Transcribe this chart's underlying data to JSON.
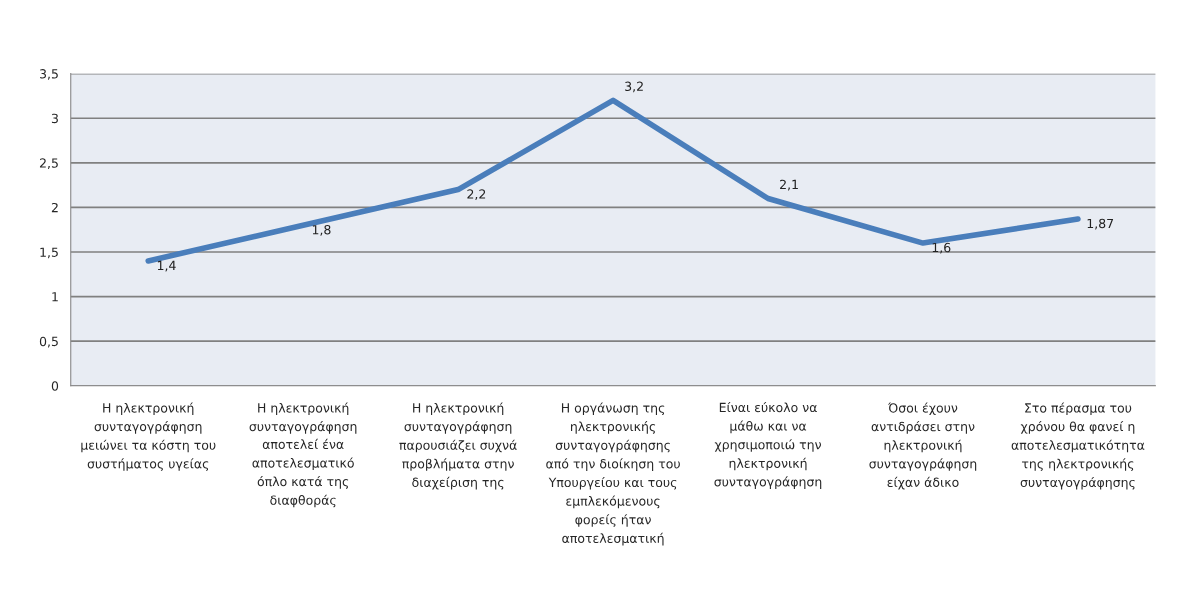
{
  "chart_data": {
    "type": "line",
    "categories": [
      "Η ηλεκτρονική\nσυνταγογράφηση\nμειώνει τα κόστη του\nσυστήματος υγείας",
      "Η ηλεκτρονική\nσυνταγογράφηση\nαποτελεί ένα\nαποτελεσματικό\nόπλο κατά της\nδιαφθοράς",
      "Η ηλεκτρονική\nσυνταγογράφηση\nπαρουσιάζει συχνά\nπροβλήματα στην\nδιαχείριση της",
      "Η οργάνωση της\nηλεκτρονικής\nσυνταγογράφησης\nαπό την διοίκηση του\nΥπουργείου και τους\nεμπλεκόμενους\nφορείς ήταν\nαποτελεσματική",
      "Είναι εύκολο να\nμάθω και να\nχρησιμοποιώ την\nηλεκτρονική\nσυνταγογράφηση",
      "Όσοι έχουν\nαντιδράσει στην\nηλεκτρονική\nσυνταγογράφηση\nείχαν άδικο",
      "Στο πέρασμα του\nχρόνου θα φανεί η\nαποτελεσματικότητα\nτης ηλεκτρονικής\nσυνταγογράφησης"
    ],
    "series": [
      {
        "color": "#4a7ebb",
        "values": [
          1.4,
          1.8,
          2.2,
          3.2,
          2.1,
          1.6,
          1.87
        ],
        "value_labels": [
          "1,4",
          "1,8",
          "2,2",
          "3,2",
          "2,1",
          "1,6",
          "1,87"
        ]
      }
    ],
    "ylim": [
      0,
      3.5
    ],
    "yticks": [
      0,
      {
        "value": 0.5,
        "label": "0,5"
      },
      1,
      {
        "value": 1.5,
        "label": "1,5"
      },
      2,
      {
        "value": 2.5,
        "label": "2,5"
      },
      3,
      {
        "value": 3.5,
        "label": "3,5"
      }
    ],
    "grid": "y",
    "legend": false,
    "marker": "none",
    "line_style": "solid"
  }
}
